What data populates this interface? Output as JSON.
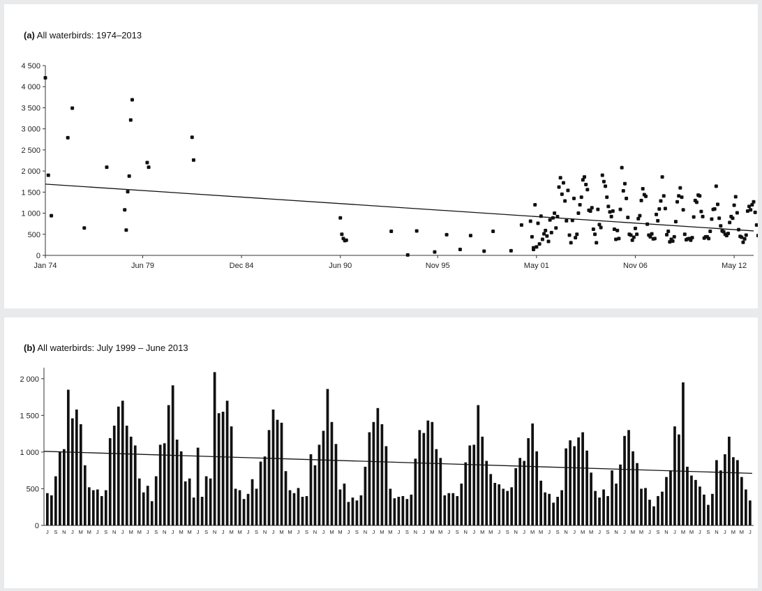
{
  "chart_data": [
    {
      "type": "scatter",
      "panel_label": "(a)",
      "title": "All waterbirds: 1974–2013",
      "y_ticks": [
        "0",
        "500",
        "1 000",
        "1 500",
        "2 000",
        "2 500",
        "3 000",
        "3 500",
        "4 000",
        "4 500"
      ],
      "ylim": [
        0,
        4500
      ],
      "x_tick_labels": [
        "Jan 74",
        "Jun 79",
        "Dec 84",
        "Jun 90",
        "Nov 95",
        "May 01",
        "Nov 06",
        "May 12"
      ],
      "x_tick_dates": [
        "1974-01",
        "1979-06",
        "1984-12",
        "1990-06",
        "1995-11",
        "2001-05",
        "2006-11",
        "2012-05"
      ],
      "xlim": [
        "1974-01",
        "2013-06"
      ],
      "grid": false,
      "legend": "none",
      "marker_color": "#111111",
      "trend_line": {
        "from": [
          "1974-01",
          1690
        ],
        "to": [
          "2013-06",
          580
        ]
      },
      "points": [
        [
          "1974-01",
          4210
        ],
        [
          "1974-03",
          1900
        ],
        [
          "1974-05",
          940
        ],
        [
          "1975-04",
          2790
        ],
        [
          "1975-07",
          3490
        ],
        [
          "1976-03",
          650
        ],
        [
          "1977-06",
          2090
        ],
        [
          "1978-06",
          1080
        ],
        [
          "1978-07",
          600
        ],
        [
          "1978-08",
          1510
        ],
        [
          "1978-09",
          1880
        ],
        [
          "1978-10",
          3210
        ],
        [
          "1978-11",
          3690
        ],
        [
          "1979-09",
          2200
        ],
        [
          "1979-10",
          2090
        ],
        [
          "1982-03",
          2800
        ],
        [
          "1982-04",
          2260
        ],
        [
          "1990-06",
          890
        ],
        [
          "1990-07",
          500
        ],
        [
          "1990-08",
          400
        ],
        [
          "1990-09",
          350
        ],
        [
          "1990-10",
          360
        ],
        [
          "1993-04",
          570
        ],
        [
          "1994-03",
          10
        ],
        [
          "1994-09",
          580
        ],
        [
          "1995-09",
          80
        ],
        [
          "1996-05",
          490
        ],
        [
          "1997-02",
          140
        ],
        [
          "1997-09",
          470
        ],
        [
          "1998-06",
          100
        ],
        [
          "1998-12",
          570
        ],
        [
          "1999-12",
          110
        ],
        [
          "2000-07",
          720
        ],
        [
          "2001-03",
          140
        ]
      ],
      "points_dense": {
        "from": "2001-01",
        "step_months": 1,
        "values": [
          810,
          440,
          180,
          1200,
          200,
          760,
          270,
          930,
          380,
          510,
          590,
          460,
          330,
          840,
          540,
          890,
          1000,
          650,
          920,
          1620,
          1840,
          1450,
          1720,
          1290,
          820,
          1540,
          480,
          300,
          830,
          1350,
          420,
          500,
          1000,
          1200,
          1380,
          1790,
          1860,
          1680,
          1560,
          1070,
          1050,
          1130,
          620,
          500,
          300,
          1090,
          730,
          660,
          1900,
          1750,
          1640,
          1380,
          1160,
          1030,
          920,
          1050,
          620,
          380,
          590,
          400,
          1090,
          2080,
          1530,
          1700,
          1350,
          900,
          500,
          480,
          360,
          430,
          640,
          500,
          870,
          940,
          1300,
          1580,
          1440,
          1400,
          740,
          480,
          440,
          510,
          390,
          400,
          970,
          820,
          1100,
          1290,
          1860,
          1410,
          1110,
          490,
          570,
          320,
          380,
          340,
          440,
          800,
          1270,
          1410,
          1600,
          1380,
          1080,
          500,
          370,
          390,
          400,
          360,
          420,
          910,
          1300,
          1260,
          1430,
          1410,
          1040,
          920,
          410,
          440,
          440,
          400,
          570,
          860,
          1090,
          1100,
          1640,
          1210,
          880,
          700,
          580,
          560,
          500,
          470,
          520,
          780,
          920,
          880,
          1190,
          1390,
          1010,
          610,
          450,
          430,
          310,
          390,
          480,
          1050,
          1160,
          1080,
          1200,
          1270,
          1020,
          720,
          470,
          380,
          490,
          400,
          750,
          570,
          830,
          1220,
          1300,
          1010,
          850,
          500,
          510,
          350,
          260,
          400,
          460,
          660,
          750,
          1350,
          1240,
          1950,
          800,
          680,
          620,
          530,
          420,
          280,
          430,
          890,
          750,
          970,
          1210,
          930,
          890,
          660,
          490,
          340
        ]
      }
    },
    {
      "type": "bar",
      "panel_label": "(b)",
      "title": "All waterbirds: July 1999 – June 2013",
      "y_ticks": [
        "0",
        "500",
        "1 000",
        "1 500",
        "2 000"
      ],
      "ylim": [
        0,
        2150
      ],
      "month_letters": [
        "J",
        "A",
        "S",
        "O",
        "N",
        "D",
        "J",
        "F",
        "M",
        "A",
        "M",
        "J"
      ],
      "x_tick_labels_shown": [
        "J",
        "S",
        "N",
        "J",
        "M",
        "M"
      ],
      "grid": false,
      "legend": "none",
      "bar_color": "#111111",
      "trend_line": {
        "from": 1010,
        "to": 710
      },
      "values": [
        440,
        410,
        670,
        1000,
        1040,
        1850,
        1460,
        1580,
        1380,
        820,
        520,
        480,
        490,
        400,
        480,
        1190,
        1360,
        1620,
        1700,
        1360,
        1210,
        1090,
        640,
        450,
        540,
        330,
        670,
        1100,
        1120,
        1640,
        1910,
        1170,
        1010,
        600,
        640,
        380,
        1060,
        390,
        670,
        640,
        2090,
        1530,
        1550,
        1700,
        1350,
        500,
        480,
        360,
        430,
        630,
        500,
        870,
        940,
        1300,
        1580,
        1440,
        1400,
        740,
        480,
        440,
        510,
        390,
        400,
        970,
        820,
        1100,
        1290,
        1860,
        1410,
        1110,
        490,
        570,
        320,
        380,
        340,
        410,
        800,
        1270,
        1410,
        1600,
        1380,
        1080,
        500,
        370,
        390,
        400,
        360,
        420,
        910,
        1300,
        1260,
        1430,
        1410,
        1040,
        920,
        410,
        440,
        440,
        400,
        570,
        860,
        1090,
        1100,
        1640,
        1210,
        880,
        700,
        580,
        560,
        500,
        470,
        520,
        780,
        920,
        880,
        1190,
        1390,
        1010,
        610,
        450,
        430,
        310,
        390,
        480,
        1050,
        1160,
        1080,
        1200,
        1270,
        1020,
        720,
        470,
        380,
        490,
        400,
        750,
        570,
        830,
        1220,
        1300,
        1010,
        850,
        500,
        510,
        350,
        260,
        400,
        460,
        660,
        750,
        1350,
        1240,
        1950,
        800,
        680,
        620,
        530,
        420,
        280,
        430,
        890,
        750,
        970,
        1210,
        930,
        890,
        660,
        490,
        340
      ]
    }
  ]
}
